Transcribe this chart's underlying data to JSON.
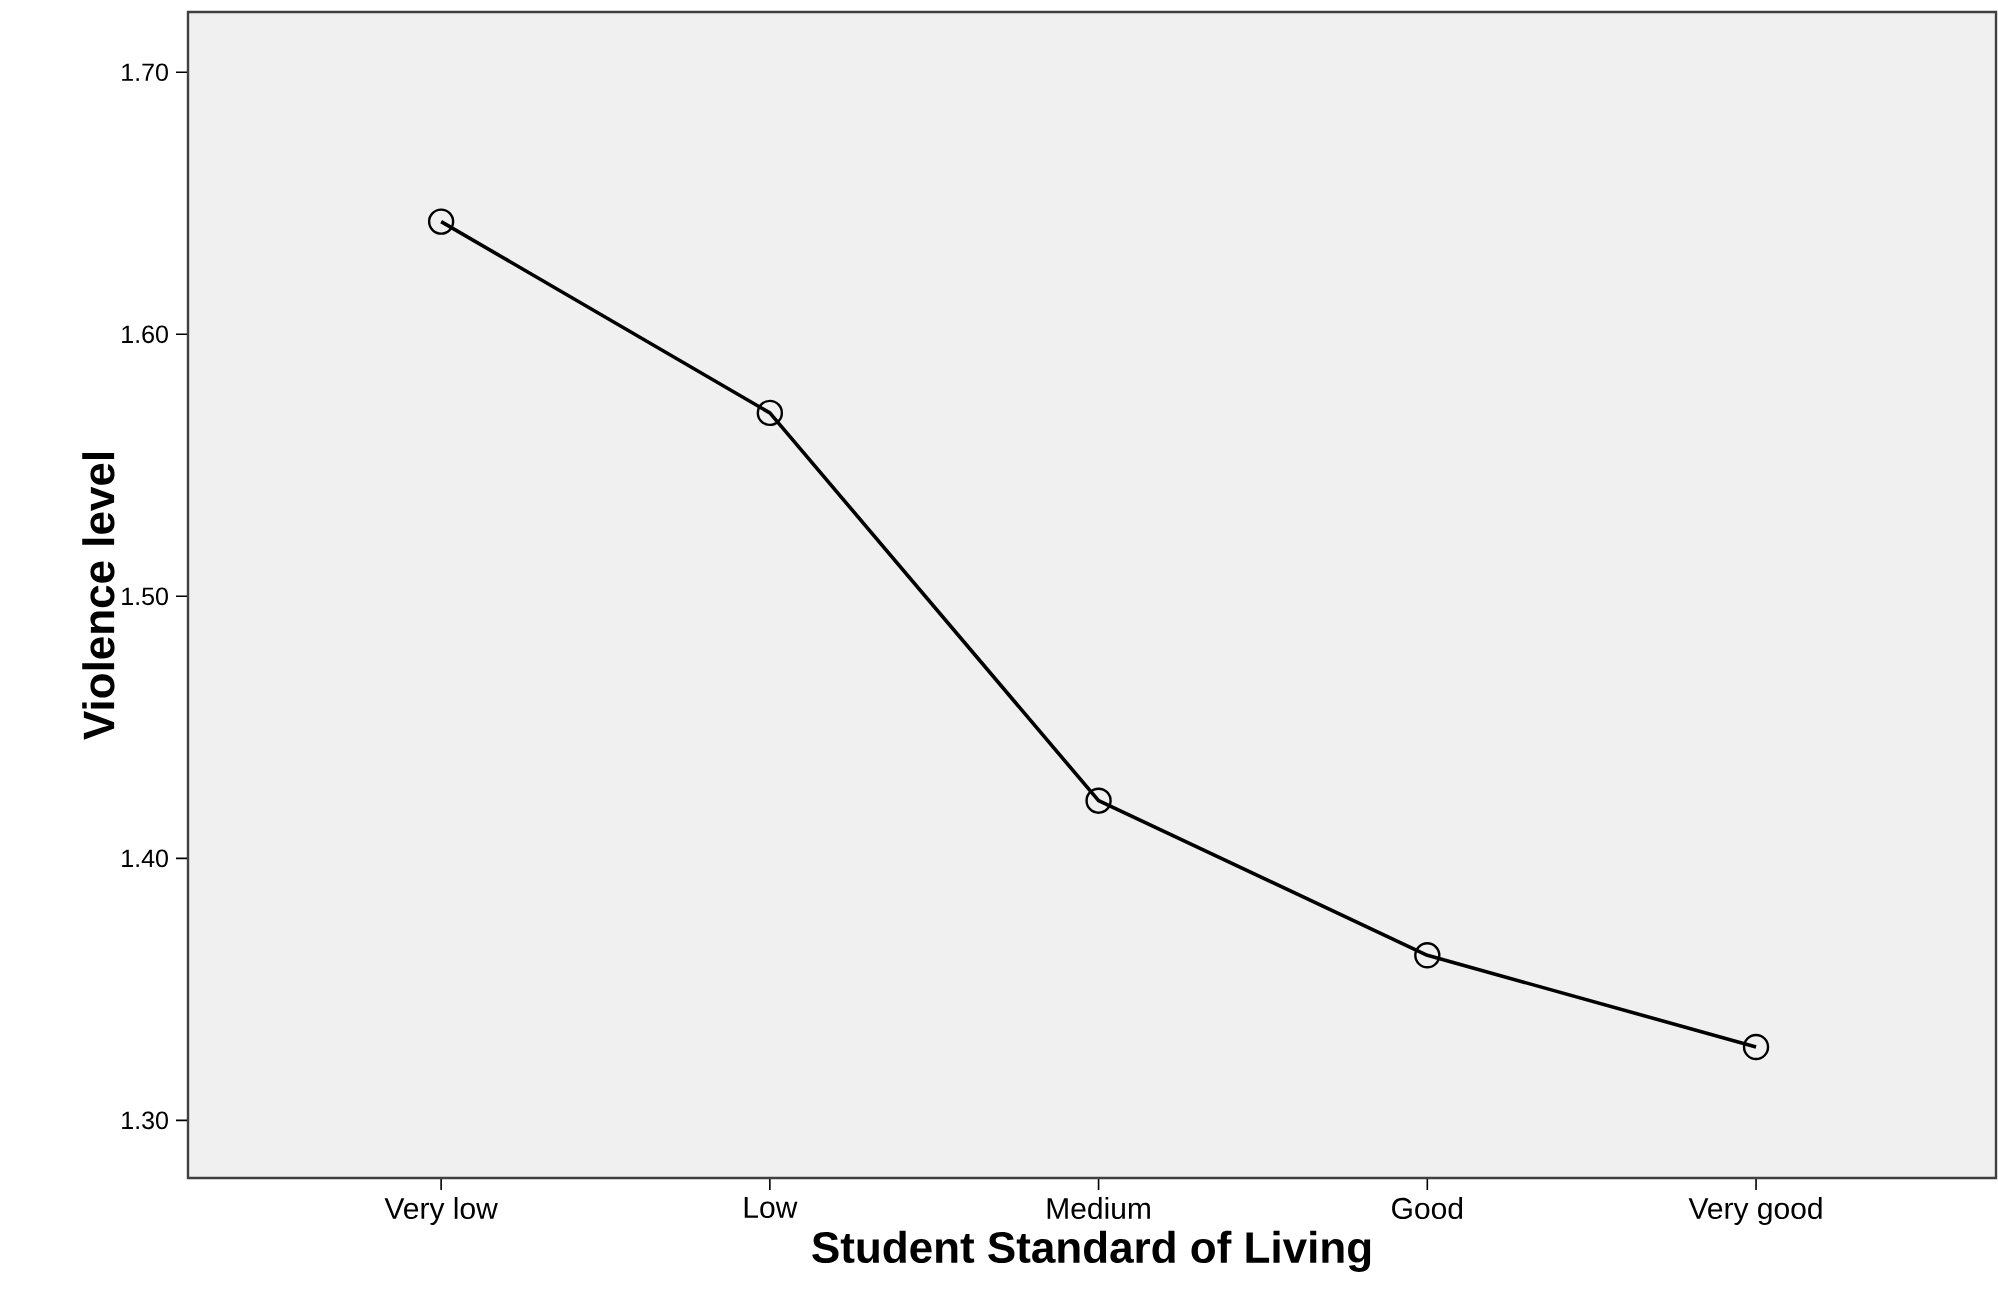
{
  "chart_data": {
    "type": "line",
    "xlabel": "Student Standard of Living",
    "ylabel": "Violence level",
    "categories": [
      "Very low",
      "Low",
      "Medium",
      "Good",
      "Very good"
    ],
    "values": [
      1.643,
      1.57,
      1.422,
      1.363,
      1.328
    ],
    "color": "#000000",
    "marker": "circle",
    "line_style": "solid",
    "ylim": [
      1.278,
      1.723
    ],
    "yticks": [
      {
        "value": 1.3,
        "label": "1.30"
      },
      {
        "value": 1.4,
        "label": "1.40"
      },
      {
        "value": 1.5,
        "label": "1.50"
      },
      {
        "value": 1.6,
        "label": "1.60"
      },
      {
        "value": 1.7,
        "label": "1.70"
      }
    ]
  }
}
